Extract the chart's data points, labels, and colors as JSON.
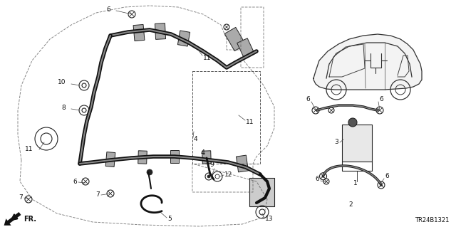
{
  "bg_color": "#ffffff",
  "diagram_code": "TR24B1321",
  "fig_width": 6.4,
  "fig_height": 3.19,
  "dpi": 100,
  "text_color": "#111111",
  "line_color": "#222222",
  "image_b64": ""
}
